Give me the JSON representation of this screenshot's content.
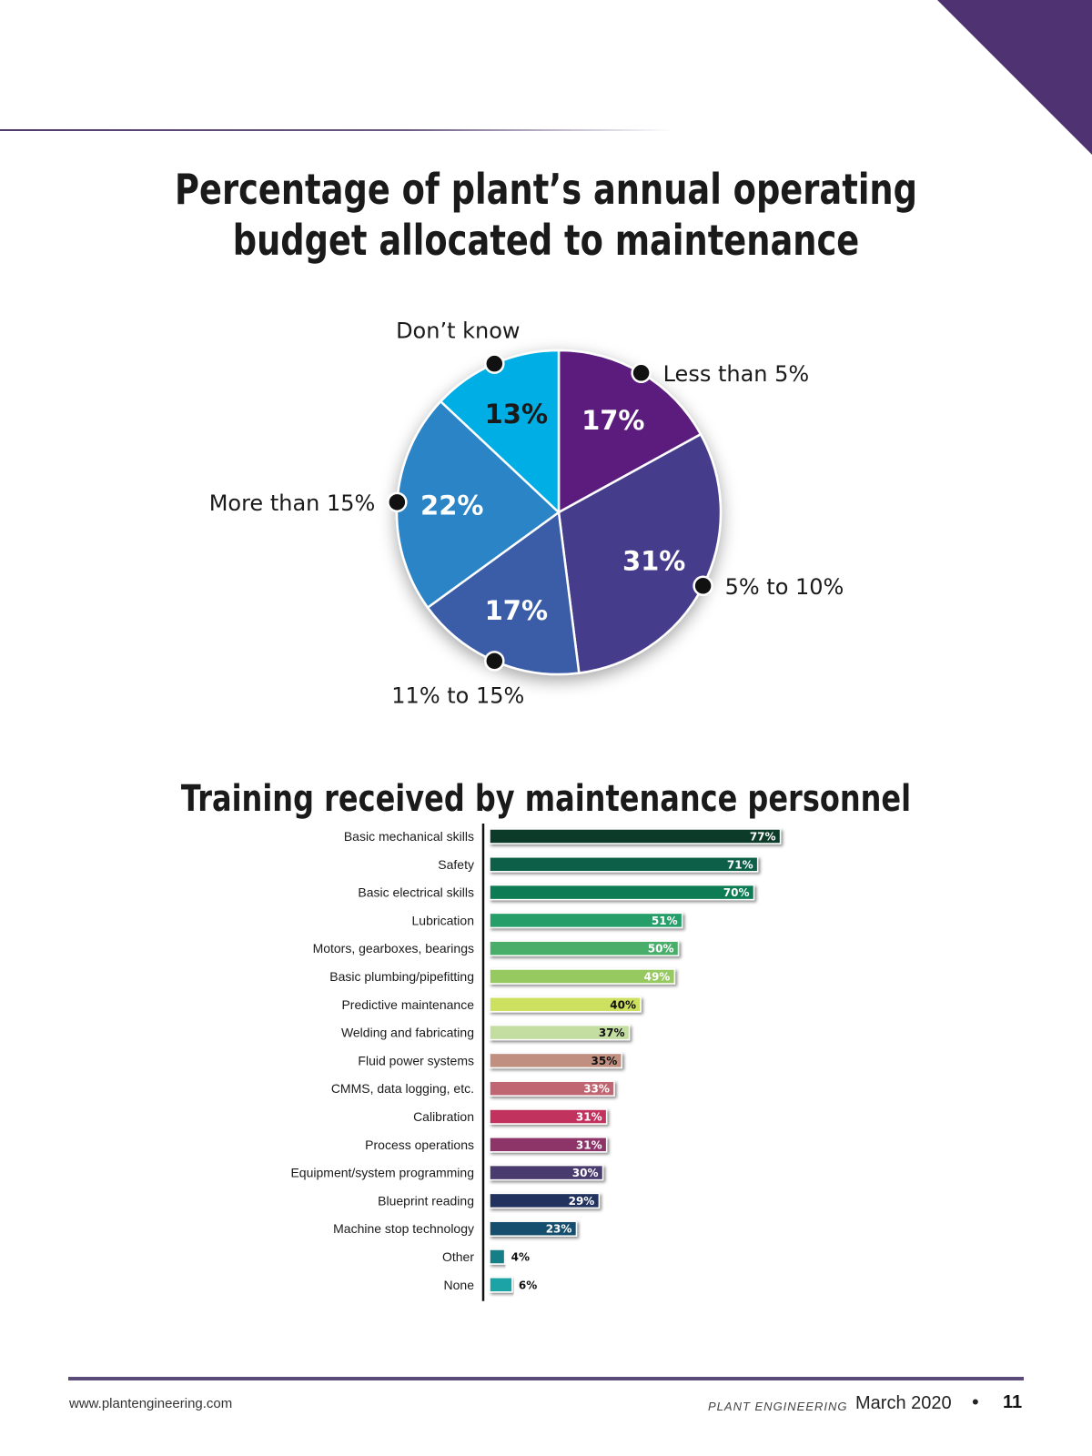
{
  "chart_data": [
    {
      "type": "pie",
      "title": "Percentage of plant’s annual operating budget allocated to maintenance",
      "slices": [
        {
          "label": "Less than 5%",
          "value": 17,
          "color": "#5b1f7e"
        },
        {
          "label": "5% to 10%",
          "value": 31,
          "color": "#453e8c"
        },
        {
          "label": "11% to 15%",
          "value": 17,
          "color": "#3a5da8"
        },
        {
          "label": "More than 15%",
          "value": 22,
          "color": "#2a84c6"
        },
        {
          "label": "Don’t know",
          "value": 13,
          "color": "#00aee6"
        }
      ]
    },
    {
      "type": "bar",
      "orientation": "horizontal",
      "title": "Training received by maintenance personnel",
      "categories": [
        "Basic mechanical skills",
        "Safety",
        "Basic electrical skills",
        "Lubrication",
        "Motors, gearboxes, bearings",
        "Basic plumbing/pipefitting",
        "Predictive maintenance",
        "Welding and fabricating",
        "Fluid power systems",
        "CMMS, data logging, etc.",
        "Calibration",
        "Process operations",
        "Equipment/system programming",
        "Blueprint reading",
        "Machine stop technology",
        "Other",
        "None"
      ],
      "values": [
        77,
        71,
        70,
        51,
        50,
        49,
        40,
        37,
        35,
        33,
        31,
        31,
        30,
        29,
        23,
        4,
        6
      ],
      "colors": [
        "#0b3b2a",
        "#0f6146",
        "#0f7b55",
        "#269e69",
        "#4aae6a",
        "#96c95f",
        "#cde05e",
        "#c4dda0",
        "#c18f7f",
        "#c06672",
        "#c2325e",
        "#8d3567",
        "#4a3a6e",
        "#23335f",
        "#174f6e",
        "#137e86",
        "#1aa3a6"
      ],
      "value_label_colors": [
        "#ffffff",
        "#ffffff",
        "#ffffff",
        "#ffffff",
        "#ffffff",
        "#ffffff",
        "#111111",
        "#111111",
        "#111111",
        "#ffffff",
        "#ffffff",
        "#ffffff",
        "#ffffff",
        "#ffffff",
        "#ffffff",
        "#111111",
        "#111111"
      ],
      "value_suffix": "%"
    }
  ],
  "footer": {
    "url": "www.plantengineering.com",
    "magazine": "PLANT ENGINEERING",
    "date": "March 2020",
    "separator": "•",
    "page": "11"
  }
}
